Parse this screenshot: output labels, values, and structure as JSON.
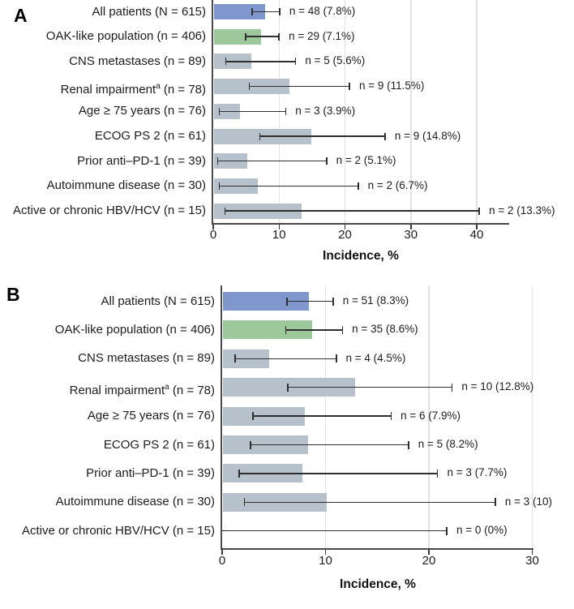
{
  "colors": {
    "all_patients_bar": "#8097CE",
    "oak_population_bar": "#9CC89B",
    "subgroup_bar": "#B7C1CC",
    "error_bar": "#2E2E2E",
    "axis": "#4A4A4A",
    "gridline": "#DEE2E6",
    "text": "#1C1C1C"
  },
  "chart_data": [
    {
      "panel_label": "A",
      "type": "bar",
      "orientation": "horizontal",
      "xlabel": "Incidence, %",
      "xlim": [
        0,
        44.8
      ],
      "xticks": [
        0,
        10,
        20,
        30,
        40
      ],
      "grid": true,
      "legend": "none",
      "categories": [
        "All patients (N = 615)",
        "OAK-like population (n = 406)",
        "CNS metastases (n = 89)",
        "Renal impairmentᵃ (n = 78)",
        "Age ≥ 75 years (n = 76)",
        "ECOG PS 2 (n = 61)",
        "Prior anti–PD-1 (n = 39)",
        "Autoimmune disease (n = 30)",
        "Active or chronic HBV/HCV (n = 15)"
      ],
      "values": [
        7.8,
        7.1,
        5.6,
        11.5,
        3.9,
        14.8,
        5.1,
        6.7,
        13.3
      ],
      "ci_low": [
        5.8,
        4.8,
        1.8,
        5.4,
        0.8,
        7.0,
        0.6,
        0.8,
        1.7
      ],
      "ci_high": [
        10.2,
        10.1,
        12.6,
        20.8,
        11.1,
        26.2,
        17.3,
        22.1,
        40.5
      ],
      "point_labels": [
        "n = 48 (7.8%)",
        "n = 29 (7.1%)",
        "n = 5 (5.6%)",
        "n = 9 (11.5%)",
        "n = 3 (3.9%)",
        "n = 9 (14.8%)",
        "n = 2 (5.1%)",
        "n = 2 (6.7%)",
        "n = 2 (13.3%)"
      ],
      "bar_colors": [
        "#8097CE",
        "#9CC89B",
        "#B7C1CC",
        "#B7C1CC",
        "#B7C1CC",
        "#B7C1CC",
        "#B7C1CC",
        "#B7C1CC",
        "#B7C1CC"
      ]
    },
    {
      "panel_label": "B",
      "type": "bar",
      "orientation": "horizontal",
      "xlabel": "Incidence, %",
      "xlim": [
        0,
        30.2
      ],
      "xticks": [
        0,
        10,
        20,
        30
      ],
      "grid": true,
      "legend": "none",
      "categories": [
        "All patients (N = 615)",
        "OAK-like population (n = 406)",
        "CNS metastases (n = 89)",
        "Renal impairmentᵃ (n = 78)",
        "Age ≥ 75 years (n = 76)",
        "ECOG PS 2 (n = 61)",
        "Prior anti–PD-1 (n = 39)",
        "Autoimmune disease (n = 30)",
        "Active or chronic HBV/HCV (n = 15)"
      ],
      "values": [
        8.3,
        8.6,
        4.5,
        12.8,
        7.9,
        8.2,
        7.7,
        10,
        0
      ],
      "ci_low": [
        6.2,
        6.1,
        1.2,
        6.3,
        2.9,
        2.7,
        1.6,
        2.1,
        0
      ],
      "ci_high": [
        10.8,
        11.7,
        11.1,
        22.3,
        16.4,
        18.1,
        20.9,
        26.5,
        21.8
      ],
      "point_labels": [
        "n = 51 (8.3%)",
        "n = 35 (8.6%)",
        "n = 4 (4.5%)",
        "n = 10 (12.8%)",
        "n = 6 (7.9%)",
        "n = 5 (8.2%)",
        "n = 3 (7.7%)",
        "n = 3 (10)",
        "n = 0 (0%)"
      ],
      "bar_colors": [
        "#8097CE",
        "#9CC89B",
        "#B7C1CC",
        "#B7C1CC",
        "#B7C1CC",
        "#B7C1CC",
        "#B7C1CC",
        "#B7C1CC",
        "#B7C1CC"
      ]
    }
  ]
}
